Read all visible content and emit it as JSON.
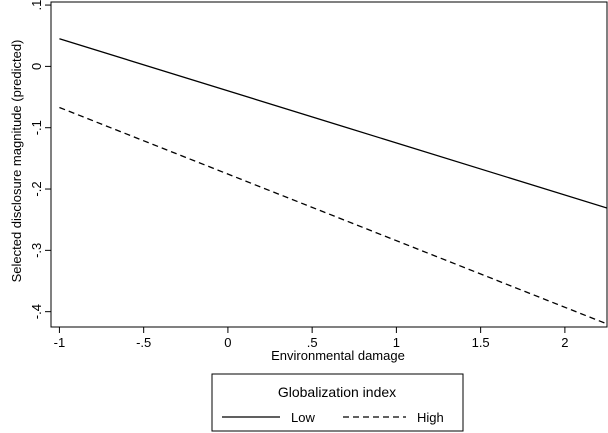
{
  "chart_data": {
    "type": "line",
    "xlabel": "Environmental damage",
    "ylabel": "Selected disclosure magnitude (predicted)",
    "xlim": [
      -1.05,
      2.25
    ],
    "ylim": [
      -0.425,
      0.105
    ],
    "xticks": [
      {
        "value": -1,
        "label": "-1"
      },
      {
        "value": -0.5,
        "label": "-.5"
      },
      {
        "value": 0,
        "label": "0"
      },
      {
        "value": 0.5,
        "label": ".5"
      },
      {
        "value": 1,
        "label": "1"
      },
      {
        "value": 1.5,
        "label": "1.5"
      },
      {
        "value": 2,
        "label": "2"
      }
    ],
    "yticks": [
      {
        "value": 0.1,
        "label": ".1"
      },
      {
        "value": 0,
        "label": "0"
      },
      {
        "value": -0.1,
        "label": "-.1"
      },
      {
        "value": -0.2,
        "label": "-.2"
      },
      {
        "value": -0.3,
        "label": "-.3"
      },
      {
        "value": -0.4,
        "label": "-.4"
      }
    ],
    "grid": false,
    "legend": {
      "title": "Globalization index",
      "placement": "bottom"
    },
    "series": [
      {
        "name": "Low",
        "style": "solid",
        "color": "#000000",
        "x": [
          -1,
          2.25
        ],
        "y": [
          0.045,
          -0.231
        ]
      },
      {
        "name": "High",
        "style": "dashed",
        "color": "#000000",
        "x": [
          -1,
          2.25
        ],
        "y": [
          -0.067,
          -0.42
        ]
      }
    ]
  }
}
